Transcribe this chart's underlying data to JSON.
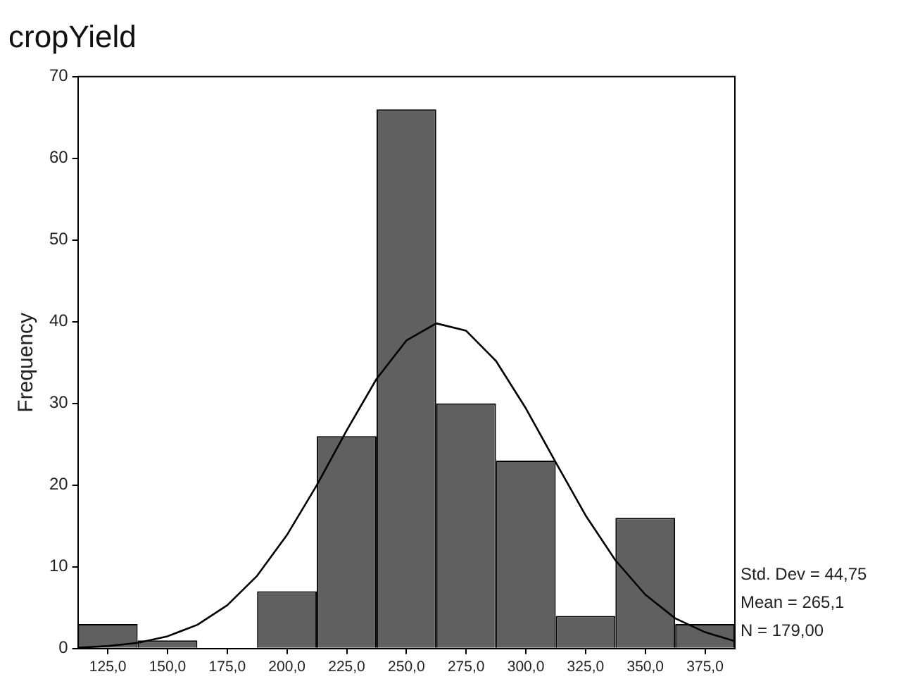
{
  "chart_data": {
    "type": "histogram",
    "title": "cropYield",
    "ylabel": "Frequency",
    "bins": [
      112.5,
      137.5,
      162.5,
      187.5,
      212.5,
      237.5,
      262.5,
      287.5,
      312.5,
      337.5,
      362.5,
      387.5
    ],
    "values": [
      3,
      1,
      0,
      7,
      26,
      66,
      30,
      23,
      4,
      16,
      3
    ],
    "color": "#606060",
    "series": [
      {
        "type": "line",
        "color": "#000000",
        "x": [
          112.5,
          125,
          137.5,
          150,
          162.5,
          175,
          187.5,
          200,
          212.5,
          225,
          237.5,
          250,
          262.5,
          275,
          287.5,
          300,
          312.5,
          325,
          337.5,
          350,
          362.5,
          375,
          387.5
        ],
        "values": [
          0.1,
          0.3,
          0.7,
          1.5,
          2.9,
          5.3,
          8.9,
          13.9,
          20.0,
          26.7,
          33.0,
          37.7,
          39.8,
          38.9,
          35.2,
          29.4,
          22.8,
          16.3,
          10.8,
          6.6,
          3.7,
          2.0,
          0.9
        ]
      }
    ],
    "xlim": [
      112.5,
      387.5
    ],
    "xticks": [
      {
        "value": 125,
        "label": "125,0"
      },
      {
        "value": 150,
        "label": "150,0"
      },
      {
        "value": 175,
        "label": "175,0"
      },
      {
        "value": 200,
        "label": "200,0"
      },
      {
        "value": 225,
        "label": "225,0"
      },
      {
        "value": 250,
        "label": "250,0"
      },
      {
        "value": 275,
        "label": "275,0"
      },
      {
        "value": 300,
        "label": "300,0"
      },
      {
        "value": 325,
        "label": "325,0"
      },
      {
        "value": 350,
        "label": "350,0"
      },
      {
        "value": 375,
        "label": "375,0"
      }
    ],
    "ylim": [
      0,
      70
    ],
    "yticks": [
      0,
      10,
      20,
      30,
      40,
      50,
      60,
      70
    ],
    "grid": false,
    "legend": false,
    "marker": "none",
    "annotations": [
      "Std. Dev = 44,75",
      "Mean = 265,1",
      "N = 179,00"
    ]
  }
}
